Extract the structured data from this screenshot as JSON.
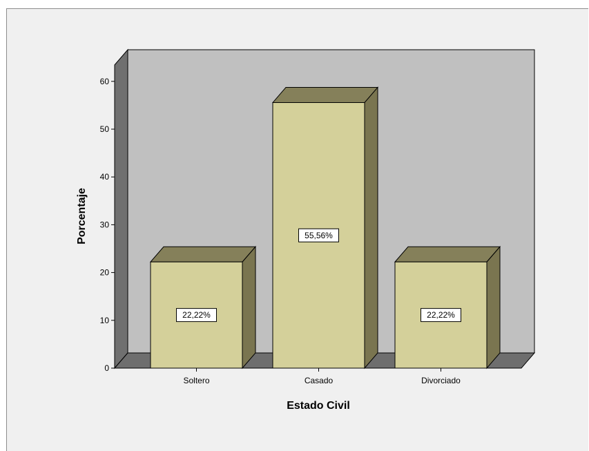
{
  "chart_data": {
    "type": "bar",
    "style": "3d",
    "categories": [
      "Soltero",
      "Casado",
      "Divorciado"
    ],
    "values": [
      22.22,
      55.56,
      22.22
    ],
    "data_labels": [
      "22,22%",
      "55,56%",
      "22,22%"
    ],
    "xlabel": "Estado Civil",
    "ylabel": "Porcentaje",
    "ylim": [
      0,
      60
    ],
    "yticks": [
      0,
      10,
      20,
      30,
      40,
      50,
      60
    ],
    "grid": false,
    "colors": {
      "bar_front": "#d4d09a",
      "bar_top": "#85805a",
      "bar_side": "#7a7550",
      "back_wall": "#c0c0c0",
      "side_wall": "#707070",
      "floor": "#6e6e6e",
      "frame_background": "#f0f0f0"
    }
  }
}
